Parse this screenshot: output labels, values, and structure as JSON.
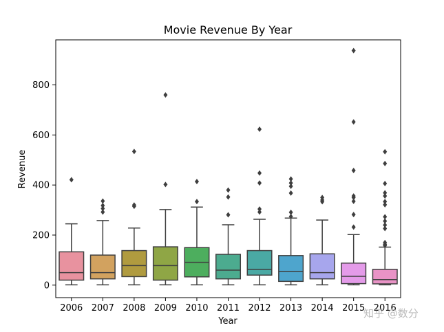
{
  "chart_data": {
    "type": "box",
    "title": "Movie Revenue By Year",
    "xlabel": "Year",
    "ylabel": "Revenue",
    "ylim": [
      -50,
      980
    ],
    "yticks": [
      0,
      200,
      400,
      600,
      800
    ],
    "categories": [
      "2006",
      "2007",
      "2008",
      "2009",
      "2010",
      "2011",
      "2012",
      "2013",
      "2014",
      "2015",
      "2016"
    ],
    "series": [
      {
        "q1": 20,
        "median": 50,
        "q3": 133,
        "whisker_low": 1,
        "whisker_high": 245,
        "outliers": [
          421
        ],
        "color": "#E8929F"
      },
      {
        "q1": 25,
        "median": 50,
        "q3": 120,
        "whisker_low": 1,
        "whisker_high": 258,
        "outliers": [
          292,
          306,
          318,
          336
        ],
        "color": "#D2A25F"
      },
      {
        "q1": 34,
        "median": 78,
        "q3": 138,
        "whisker_low": 1,
        "whisker_high": 228,
        "outliers": [
          315,
          320,
          534
        ],
        "color": "#B09B3F"
      },
      {
        "q1": 20,
        "median": 78,
        "q3": 153,
        "whisker_low": 1,
        "whisker_high": 302,
        "outliers": [
          402,
          760
        ],
        "color": "#8FA645"
      },
      {
        "q1": 33,
        "median": 91,
        "q3": 150,
        "whisker_low": 1,
        "whisker_high": 312,
        "outliers": [
          334,
          414
        ],
        "color": "#4DAE5E"
      },
      {
        "q1": 25,
        "median": 60,
        "q3": 123,
        "whisker_low": 1,
        "whisker_high": 241,
        "outliers": [
          281,
          352,
          380
        ],
        "color": "#4CAB8F"
      },
      {
        "q1": 40,
        "median": 63,
        "q3": 138,
        "whisker_low": 1,
        "whisker_high": 263,
        "outliers": [
          292,
          304,
          408,
          448,
          623
        ],
        "color": "#4AA9A4"
      },
      {
        "q1": 15,
        "median": 55,
        "q3": 118,
        "whisker_low": 1,
        "whisker_high": 268,
        "outliers": [
          274,
          291,
          368,
          395,
          408,
          424
        ],
        "color": "#4EA5CD"
      },
      {
        "q1": 25,
        "median": 50,
        "q3": 125,
        "whisker_low": 1,
        "whisker_high": 260,
        "outliers": [
          333,
          340,
          350
        ],
        "color": "#A7A6ED"
      },
      {
        "q1": 6,
        "median": 35,
        "q3": 88,
        "whisker_low": 1,
        "whisker_high": 202,
        "outliers": [
          232,
          282,
          335,
          350,
          356,
          458,
          652,
          937
        ],
        "color": "#E49BE9"
      },
      {
        "q1": 5,
        "median": 22,
        "q3": 63,
        "whisker_low": 1,
        "whisker_high": 152,
        "outliers": [
          158,
          163,
          170,
          226,
          240,
          256,
          273,
          321,
          334,
          356,
          369,
          406,
          486,
          533
        ],
        "color": "#E993C6"
      }
    ]
  },
  "watermark": "知乎 @数分"
}
